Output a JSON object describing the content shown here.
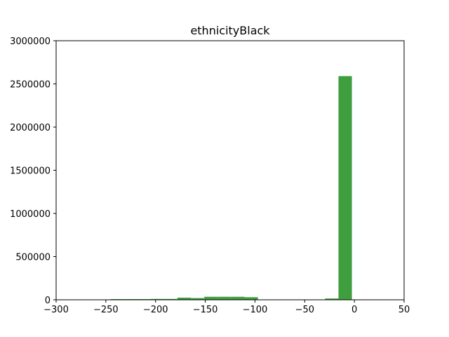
{
  "chart_data": {
    "type": "bar",
    "title": "ethnicityBlack",
    "xlabel": "",
    "ylabel": "",
    "xlim": [
      -300,
      50
    ],
    "ylim": [
      0,
      3000000
    ],
    "grid": false,
    "bar_color": "#3f9f3f",
    "x_ticks": [
      -300,
      -250,
      -200,
      -150,
      -100,
      -50,
      0,
      50
    ],
    "x_tick_labels": [
      "−300",
      "−250",
      "−200",
      "−150",
      "−100",
      "−50",
      "0",
      "50"
    ],
    "y_ticks": [
      0,
      500000,
      1000000,
      1500000,
      2000000,
      2500000,
      3000000
    ],
    "y_tick_labels": [
      "0",
      "500000",
      "1000000",
      "1500000",
      "2000000",
      "2500000",
      "3000000"
    ],
    "bins": [
      {
        "x0": -245.5,
        "x1": -232.0,
        "value": 8000
      },
      {
        "x0": -232.0,
        "x1": -218.5,
        "value": 8000
      },
      {
        "x0": -218.5,
        "x1": -205.0,
        "value": 8000
      },
      {
        "x0": -205.0,
        "x1": -191.5,
        "value": 10000
      },
      {
        "x0": -191.5,
        "x1": -178.0,
        "value": 10000
      },
      {
        "x0": -178.0,
        "x1": -164.5,
        "value": 25000
      },
      {
        "x0": -164.5,
        "x1": -151.0,
        "value": 20000
      },
      {
        "x0": -151.0,
        "x1": -137.5,
        "value": 35000
      },
      {
        "x0": -137.5,
        "x1": -124.0,
        "value": 35000
      },
      {
        "x0": -124.0,
        "x1": -110.5,
        "value": 35000
      },
      {
        "x0": -110.5,
        "x1": -97.0,
        "value": 30000
      },
      {
        "x0": -97.0,
        "x1": -83.5,
        "value": 0
      },
      {
        "x0": -83.5,
        "x1": -70.0,
        "value": 0
      },
      {
        "x0": -70.0,
        "x1": -56.5,
        "value": 0
      },
      {
        "x0": -56.5,
        "x1": -43.0,
        "value": 0
      },
      {
        "x0": -43.0,
        "x1": -29.5,
        "value": 0
      },
      {
        "x0": -29.5,
        "x1": -16.0,
        "value": 15000
      },
      {
        "x0": -16.0,
        "x1": -2.5,
        "value": 2590000
      }
    ]
  }
}
